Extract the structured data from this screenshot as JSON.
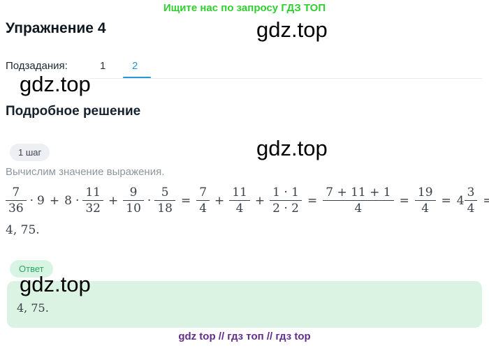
{
  "banners": {
    "top": "Ищите нас по запросу ГДЗ ТОП",
    "bottom": "gdz top  //  гдз топ  //  гдз top"
  },
  "watermark": "gdz.top",
  "header": {
    "title": "Упражнение 4"
  },
  "tabs": {
    "label": "Подзадания:",
    "items": [
      {
        "label": "1",
        "active": false
      },
      {
        "label": "2",
        "active": true
      }
    ]
  },
  "solution": {
    "heading": "Подробное решение",
    "step_badge": "1 шаг",
    "step_text": "Вычислим значение выражения.",
    "result": "4, 75."
  },
  "math": {
    "tokens": [
      {
        "t": "frac",
        "n": "7",
        "d": "36"
      },
      {
        "t": "op",
        "v": "·"
      },
      {
        "t": "num",
        "v": "9"
      },
      {
        "t": "op",
        "v": "+"
      },
      {
        "t": "num",
        "v": "8"
      },
      {
        "t": "op",
        "v": "·"
      },
      {
        "t": "frac",
        "n": "11",
        "d": "32"
      },
      {
        "t": "op",
        "v": "+"
      },
      {
        "t": "frac",
        "n": "9",
        "d": "10"
      },
      {
        "t": "op",
        "v": "·"
      },
      {
        "t": "frac",
        "n": "5",
        "d": "18"
      },
      {
        "t": "op",
        "v": "="
      },
      {
        "t": "frac",
        "n": "7",
        "d": "4"
      },
      {
        "t": "op",
        "v": "+"
      },
      {
        "t": "frac",
        "n": "11",
        "d": "4"
      },
      {
        "t": "op",
        "v": "+"
      },
      {
        "t": "frac",
        "n": "1 · 1",
        "d": "2 · 2"
      },
      {
        "t": "op",
        "v": "="
      },
      {
        "t": "frac",
        "n": "7 + 11 + 1",
        "d": "4"
      },
      {
        "t": "op",
        "v": "="
      },
      {
        "t": "frac",
        "n": "19",
        "d": "4"
      },
      {
        "t": "op",
        "v": "="
      },
      {
        "t": "num",
        "v": "4"
      },
      {
        "t": "frac",
        "n": "3",
        "d": "4"
      },
      {
        "t": "op",
        "v": "="
      }
    ]
  },
  "answer": {
    "badge": "Ответ",
    "value": "4, 75."
  },
  "colors": {
    "banner_green": "#2fcf2f",
    "tab_active_blue": "#2899d5",
    "step_badge_bg": "#edeff2",
    "answer_badge_bg": "#d8f5e3",
    "answer_badge_text": "#2aa565",
    "answer_box_bg": "#dbf3e3",
    "bottom_purple": "#632d8e",
    "math_text": "#3a4049"
  }
}
